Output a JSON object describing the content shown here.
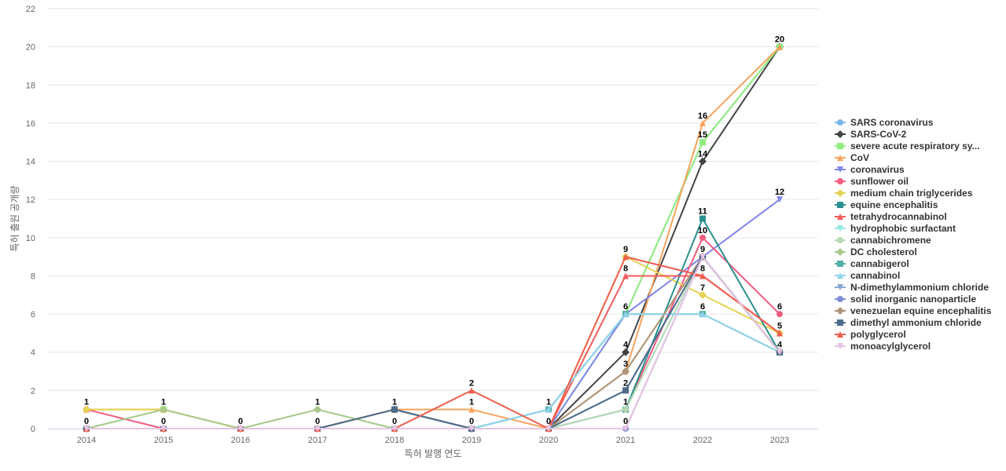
{
  "chart_data": {
    "type": "line",
    "xlabel": "특허 발행 연도",
    "ylabel": "특허 출원 공개량",
    "ylim": [
      0,
      22
    ],
    "yticks": [
      0,
      2,
      4,
      6,
      8,
      10,
      12,
      14,
      16,
      18,
      20,
      22
    ],
    "categories": [
      "2014",
      "2015",
      "2016",
      "2017",
      "2018",
      "2019",
      "2020",
      "2021",
      "2022",
      "2023"
    ],
    "grid": "horizontal",
    "legend_position": "right",
    "series": [
      {
        "name": "SARS coronavirus",
        "color": "#7cb5ec",
        "marker": "circle",
        "values": [
          0,
          0,
          0,
          0,
          0,
          0,
          1,
          6,
          15,
          20
        ]
      },
      {
        "name": "SARS-CoV-2",
        "color": "#434348",
        "marker": "diamond",
        "values": [
          0,
          0,
          0,
          0,
          1,
          0,
          0,
          4,
          14,
          20
        ]
      },
      {
        "name": "severe acute respiratory sy...",
        "color": "#90ed7d",
        "marker": "square",
        "values": [
          0,
          1,
          0,
          0,
          0,
          0,
          0,
          6,
          15,
          20
        ]
      },
      {
        "name": "CoV",
        "color": "#f7a35c",
        "marker": "triangle",
        "values": [
          1,
          1,
          0,
          0,
          1,
          1,
          0,
          3,
          16,
          20
        ]
      },
      {
        "name": "coronavirus",
        "color": "#8085e9",
        "marker": "triangle-down",
        "values": [
          0,
          0,
          0,
          0,
          0,
          0,
          0,
          6,
          9,
          12
        ]
      },
      {
        "name": "sunflower oil",
        "color": "#f15c80",
        "marker": "circle",
        "values": [
          1,
          0,
          0,
          0,
          0,
          0,
          0,
          1,
          10,
          6
        ]
      },
      {
        "name": "medium chain triglycerides",
        "color": "#e4d354",
        "marker": "diamond",
        "values": [
          1,
          1,
          0,
          0,
          0,
          0,
          0,
          9,
          7,
          5
        ]
      },
      {
        "name": "equine encephalitis",
        "color": "#2b908f",
        "marker": "square",
        "values": [
          0,
          0,
          0,
          0,
          0,
          0,
          0,
          1,
          11,
          4
        ]
      },
      {
        "name": "tetrahydrocannabinol",
        "color": "#f45b5b",
        "marker": "triangle",
        "values": [
          0,
          0,
          0,
          0,
          0,
          0,
          0,
          8,
          8,
          5
        ]
      },
      {
        "name": "hydrophobic surfactant",
        "color": "#91e8e1",
        "marker": "triangle-down",
        "values": [
          0,
          0,
          0,
          0,
          0,
          0,
          0,
          1,
          9,
          4
        ]
      },
      {
        "name": "cannabichromene",
        "color": "#b5d9b4",
        "marker": "circle",
        "values": [
          0,
          0,
          0,
          1,
          0,
          0,
          0,
          1,
          9,
          4
        ]
      },
      {
        "name": "DC cholesterol",
        "color": "#a9c98c",
        "marker": "diamond",
        "values": [
          0,
          1,
          0,
          1,
          0,
          0,
          0,
          3,
          9,
          4
        ]
      },
      {
        "name": "cannabigerol",
        "color": "#4fb0a4",
        "marker": "square",
        "values": [
          0,
          0,
          0,
          0,
          0,
          0,
          1,
          6,
          6,
          4
        ]
      },
      {
        "name": "cannabinol",
        "color": "#8fd3ea",
        "marker": "triangle",
        "values": [
          0,
          0,
          0,
          0,
          0,
          0,
          1,
          6,
          6,
          4
        ]
      },
      {
        "name": "N-dimethylammonium chloride",
        "color": "#88a7d6",
        "marker": "triangle-down",
        "values": [
          0,
          0,
          0,
          0,
          0,
          0,
          0,
          2,
          9,
          4
        ]
      },
      {
        "name": "solid inorganic nanoparticle",
        "color": "#7f8bd5",
        "marker": "circle",
        "values": [
          0,
          0,
          0,
          0,
          0,
          0,
          0,
          0,
          9,
          4
        ]
      },
      {
        "name": "venezuelan equine encephalitis",
        "color": "#b0947a",
        "marker": "diamond",
        "values": [
          0,
          0,
          0,
          0,
          0,
          0,
          0,
          3,
          9,
          4
        ]
      },
      {
        "name": "dimethyl ammonium chloride",
        "color": "#4d6b8a",
        "marker": "square",
        "values": [
          0,
          0,
          0,
          0,
          1,
          0,
          0,
          2,
          9,
          4
        ]
      },
      {
        "name": "polyglycerol",
        "color": "#ef5e4e",
        "marker": "triangle",
        "values": [
          0,
          0,
          0,
          0,
          0,
          2,
          0,
          9,
          8,
          5
        ]
      },
      {
        "name": "monoacylglycerol",
        "color": "#e6c4e1",
        "marker": "triangle-down",
        "values": [
          0,
          0,
          0,
          0,
          0,
          0,
          0,
          0,
          9,
          4
        ]
      }
    ],
    "data_labels": [
      {
        "x": "2014",
        "values": [
          1,
          0
        ]
      },
      {
        "x": "2015",
        "values": [
          1,
          0
        ]
      },
      {
        "x": "2016",
        "values": [
          0
        ]
      },
      {
        "x": "2017",
        "values": [
          1,
          0
        ]
      },
      {
        "x": "2018",
        "values": [
          1,
          0
        ]
      },
      {
        "x": "2019",
        "values": [
          2,
          1,
          0
        ]
      },
      {
        "x": "2020",
        "values": [
          1,
          0
        ]
      },
      {
        "x": "2021",
        "values": [
          9,
          8,
          6,
          4,
          3,
          2,
          1,
          0
        ]
      },
      {
        "x": "2022",
        "values": [
          16,
          15,
          14,
          11,
          10,
          9,
          8,
          7,
          6
        ]
      },
      {
        "x": "2023",
        "values": [
          20,
          12,
          6,
          5,
          4
        ]
      }
    ]
  }
}
